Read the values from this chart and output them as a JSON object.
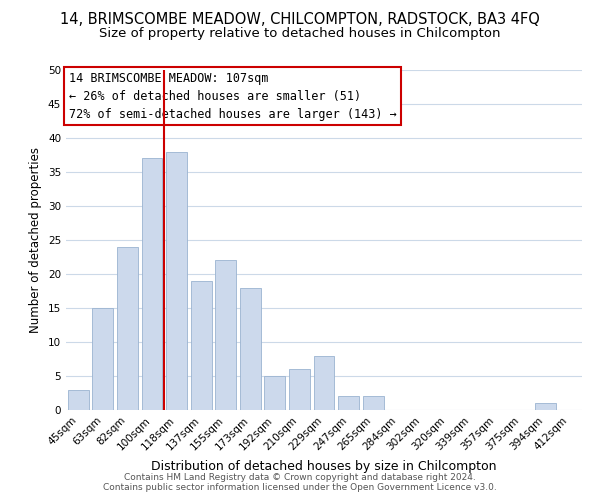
{
  "title": "14, BRIMSCOMBE MEADOW, CHILCOMPTON, RADSTOCK, BA3 4FQ",
  "subtitle": "Size of property relative to detached houses in Chilcompton",
  "xlabel": "Distribution of detached houses by size in Chilcompton",
  "ylabel": "Number of detached properties",
  "bar_labels": [
    "45sqm",
    "63sqm",
    "82sqm",
    "100sqm",
    "118sqm",
    "137sqm",
    "155sqm",
    "173sqm",
    "192sqm",
    "210sqm",
    "229sqm",
    "247sqm",
    "265sqm",
    "284sqm",
    "302sqm",
    "320sqm",
    "339sqm",
    "357sqm",
    "375sqm",
    "394sqm",
    "412sqm"
  ],
  "bar_values": [
    3,
    15,
    24,
    37,
    38,
    19,
    22,
    18,
    5,
    6,
    8,
    2,
    2,
    0,
    0,
    0,
    0,
    0,
    0,
    1,
    0
  ],
  "bar_color": "#ccd9ec",
  "bar_edge_color": "#9ab3d0",
  "vline_x": 3.5,
  "vline_color": "#cc0000",
  "ylim": [
    0,
    50
  ],
  "yticks": [
    0,
    5,
    10,
    15,
    20,
    25,
    30,
    35,
    40,
    45,
    50
  ],
  "annotation_line1": "14 BRIMSCOMBE MEADOW: 107sqm",
  "annotation_line2": "← 26% of detached houses are smaller (51)",
  "annotation_line3": "72% of semi-detached houses are larger (143) →",
  "footer_line1": "Contains HM Land Registry data © Crown copyright and database right 2024.",
  "footer_line2": "Contains public sector information licensed under the Open Government Licence v3.0.",
  "background_color": "#ffffff",
  "grid_color": "#ccd9e8",
  "title_fontsize": 10.5,
  "subtitle_fontsize": 9.5,
  "tick_fontsize": 7.5,
  "ylabel_fontsize": 8.5,
  "xlabel_fontsize": 9,
  "annotation_fontsize": 8.5,
  "footer_fontsize": 6.5
}
